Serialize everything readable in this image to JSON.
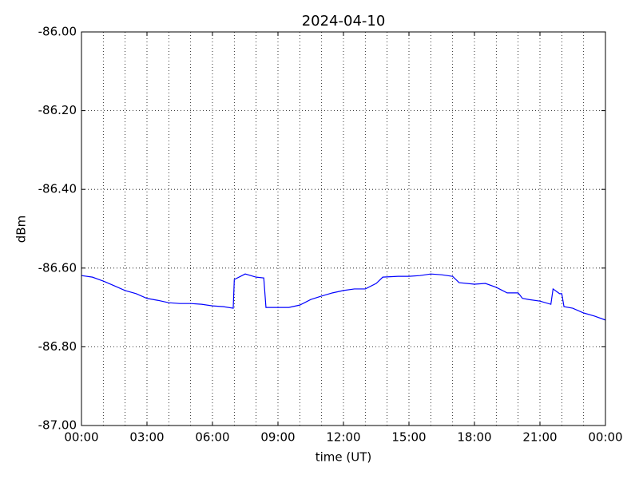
{
  "chart_data": {
    "type": "line",
    "title": "2024-04-10",
    "xlabel": "time (UT)",
    "ylabel": "dBm",
    "xlim": [
      0,
      24
    ],
    "ylim": [
      -87,
      -86
    ],
    "xticks": [
      {
        "value": 0,
        "label": "00:00"
      },
      {
        "value": 3,
        "label": "03:00"
      },
      {
        "value": 6,
        "label": "06:00"
      },
      {
        "value": 9,
        "label": "09:00"
      },
      {
        "value": 12,
        "label": "12:00"
      },
      {
        "value": 15,
        "label": "15:00"
      },
      {
        "value": 18,
        "label": "18:00"
      },
      {
        "value": 21,
        "label": "21:00"
      },
      {
        "value": 24,
        "label": "00:00"
      }
    ],
    "xminorticks": [
      1,
      2,
      4,
      5,
      7,
      8,
      10,
      11,
      13,
      14,
      16,
      17,
      19,
      20,
      22,
      23
    ],
    "yticks": [
      {
        "value": -87,
        "label": "-87.00"
      },
      {
        "value": -86.8,
        "label": "-86.80"
      },
      {
        "value": -86.6,
        "label": "-86.60"
      },
      {
        "value": -86.4,
        "label": "-86.40"
      },
      {
        "value": -86.2,
        "label": "-86.20"
      },
      {
        "value": -86,
        "label": "-86.00"
      }
    ],
    "grid": true,
    "series": [
      {
        "color": "#0000ff",
        "x": [
          0,
          0.5,
          1,
          1.5,
          2,
          2.5,
          3,
          3.5,
          4,
          4.5,
          5,
          5.5,
          6,
          6.5,
          6.95,
          7,
          7.5,
          8,
          8.35,
          8.45,
          9,
          9.5,
          10,
          10.5,
          11,
          11.5,
          12,
          12.5,
          13,
          13.5,
          13.8,
          14.5,
          15,
          15.5,
          16,
          16.5,
          17,
          17.3,
          18,
          18.5,
          19,
          19.5,
          20,
          20.2,
          20.5,
          21,
          21.5,
          21.6,
          21.9,
          22,
          22.1,
          22.5,
          23,
          23.5,
          24
        ],
        "values": [
          -86.619,
          -86.623,
          -86.633,
          -86.645,
          -86.657,
          -86.665,
          -86.677,
          -86.682,
          -86.688,
          -86.69,
          -86.69,
          -86.692,
          -86.696,
          -86.698,
          -86.702,
          -86.629,
          -86.615,
          -86.623,
          -86.625,
          -86.7,
          -86.7,
          -86.7,
          -86.694,
          -86.68,
          -86.671,
          -86.663,
          -86.657,
          -86.653,
          -86.653,
          -86.639,
          -86.623,
          -86.621,
          -86.621,
          -86.619,
          -86.615,
          -86.617,
          -86.621,
          -86.637,
          -86.641,
          -86.639,
          -86.649,
          -86.663,
          -86.663,
          -86.677,
          -86.68,
          -86.684,
          -86.692,
          -86.653,
          -86.665,
          -86.665,
          -86.698,
          -86.702,
          -86.714,
          -86.722,
          -86.732
        ]
      }
    ]
  }
}
